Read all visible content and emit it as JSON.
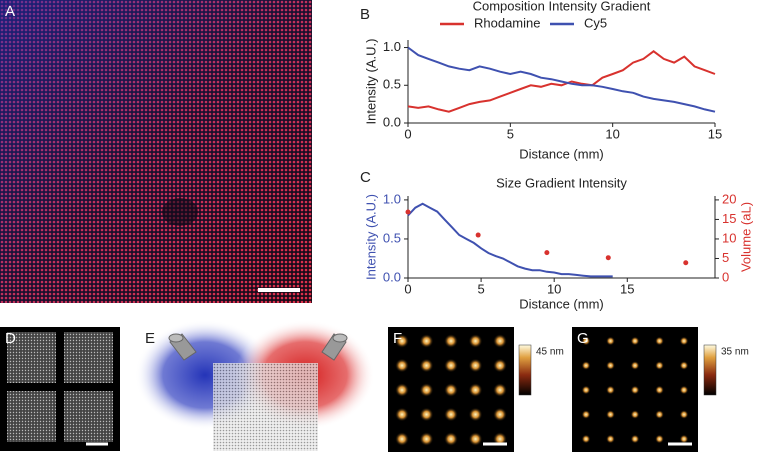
{
  "chart_data": [
    {
      "type": "line",
      "label": "B",
      "title": "Composition Intensity Gradient",
      "xlabel": "Distance (mm)",
      "ylabel": "Intensity (A.U.)",
      "x": [
        0,
        0.5,
        1,
        1.5,
        2,
        2.5,
        3,
        3.5,
        4,
        4.5,
        5,
        5.5,
        6,
        6.5,
        7,
        7.5,
        8,
        8.5,
        9,
        9.5,
        10,
        10.5,
        11,
        11.5,
        12,
        12.5,
        13,
        13.5,
        14,
        14.5,
        15
      ],
      "series": [
        {
          "name": "Rhodamine",
          "color": "#d8322e",
          "values": [
            0.22,
            0.2,
            0.22,
            0.18,
            0.15,
            0.2,
            0.25,
            0.28,
            0.3,
            0.35,
            0.4,
            0.45,
            0.5,
            0.48,
            0.52,
            0.5,
            0.55,
            0.52,
            0.5,
            0.6,
            0.65,
            0.7,
            0.8,
            0.85,
            0.95,
            0.85,
            0.8,
            0.88,
            0.75,
            0.7,
            0.65
          ]
        },
        {
          "name": "Cy5",
          "color": "#3f51b0",
          "values": [
            1.0,
            0.9,
            0.85,
            0.8,
            0.75,
            0.72,
            0.7,
            0.75,
            0.72,
            0.68,
            0.65,
            0.68,
            0.65,
            0.6,
            0.58,
            0.55,
            0.52,
            0.5,
            0.5,
            0.48,
            0.45,
            0.42,
            0.4,
            0.35,
            0.32,
            0.3,
            0.28,
            0.25,
            0.22,
            0.18,
            0.15
          ]
        }
      ],
      "xlim": [
        0,
        15
      ],
      "xticks": [
        0,
        5,
        10,
        15
      ],
      "ylim": [
        0,
        1.1
      ],
      "yticks": [
        {
          "value": 0,
          "label": "0.0"
        },
        {
          "value": 0.5,
          "label": "0.5"
        },
        {
          "value": 1,
          "label": "1.0"
        }
      ],
      "legend": "top"
    },
    {
      "type": "line",
      "label": "C",
      "title": "Size Gradient Intensity",
      "xlabel": "Distance (mm)",
      "ylabel": "Intensity (A.U.)",
      "y2label": "Volume (aL)",
      "series": [
        {
          "color": "#3f51b0",
          "x": [
            0,
            0.5,
            1,
            1.5,
            2,
            2.5,
            3,
            3.5,
            4,
            4.5,
            5,
            5.5,
            6,
            6.5,
            7,
            7.5,
            8,
            8.5,
            9,
            9.5,
            10,
            10.5,
            11,
            11.5,
            12,
            12.5,
            13,
            13.5,
            14
          ],
          "values": [
            0.8,
            0.9,
            0.95,
            0.9,
            0.85,
            0.75,
            0.65,
            0.55,
            0.5,
            0.45,
            0.38,
            0.32,
            0.28,
            0.25,
            0.2,
            0.15,
            0.12,
            0.1,
            0.1,
            0.08,
            0.07,
            0.05,
            0.05,
            0.04,
            0.03,
            0.02,
            0.02,
            0.02,
            0.02
          ]
        },
        {
          "color": "#d8322e",
          "type": "scatter",
          "axis": "y2",
          "x": [
            0,
            4.8,
            9.5,
            13.7,
            19
          ],
          "values": [
            16.9,
            11,
            6.5,
            5.2,
            3.9
          ]
        }
      ],
      "xlim": [
        0,
        21
      ],
      "xticks": [
        0,
        5,
        10,
        15
      ],
      "ylim": [
        0,
        1.05
      ],
      "yticks": [
        {
          "value": 0,
          "label": "0.0"
        },
        {
          "value": 0.5,
          "label": "0.5"
        },
        {
          "value": 1,
          "label": "1.0"
        }
      ],
      "y2lim": [
        0,
        21
      ],
      "y2ticks": [
        0,
        5,
        10,
        15,
        20
      ]
    }
  ],
  "images": {
    "A": "A",
    "D": "D",
    "E": "E",
    "F": "F",
    "F_colorbar": "45 nm",
    "G": "G",
    "G_colorbar": "35 nm"
  }
}
